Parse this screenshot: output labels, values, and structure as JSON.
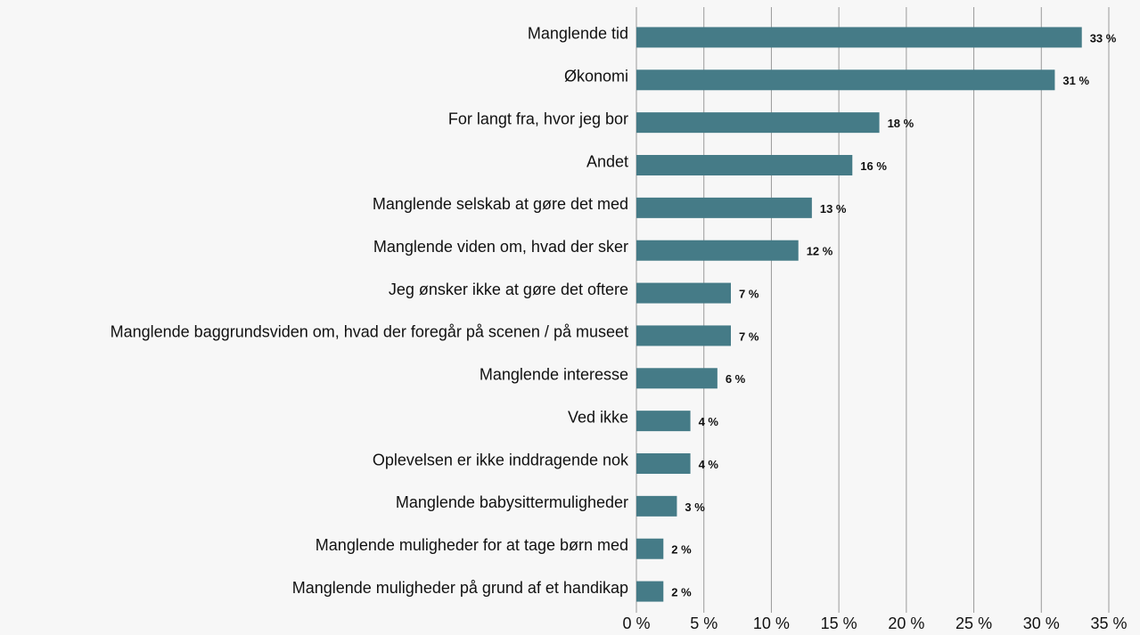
{
  "chart_data": {
    "type": "bar",
    "orientation": "horizontal",
    "categories": [
      "Manglende tid",
      "Økonomi",
      "For langt fra, hvor jeg bor",
      "Andet",
      "Manglende selskab at gøre det med",
      "Manglende viden om, hvad der sker",
      "Jeg ønsker ikke at gøre det oftere",
      "Manglende baggrundsviden om, hvad der foregår på scenen / på museet",
      "Manglende interesse",
      "Ved ikke",
      "Oplevelsen er ikke inddragende nok",
      "Manglende babysittermuligheder",
      "Manglende muligheder for at tage børn med",
      "Manglende muligheder på grund af et handikap"
    ],
    "values": [
      33,
      31,
      18,
      16,
      13,
      12,
      7,
      7,
      6,
      4,
      4,
      3,
      2,
      2
    ],
    "value_labels": [
      "33 %",
      "31 %",
      "18 %",
      "16 %",
      "13 %",
      "12 %",
      "7 %",
      "7 %",
      "6 %",
      "4 %",
      "4 %",
      "3 %",
      "2 %",
      "2 %"
    ],
    "color": "#457b87",
    "xlim": [
      0,
      35
    ],
    "xticks": [
      {
        "value": 0,
        "label": "0 %"
      },
      {
        "value": 5,
        "label": "5 %"
      },
      {
        "value": 10,
        "label": "10 %"
      },
      {
        "value": 15,
        "label": "15 %"
      },
      {
        "value": 20,
        "label": "20 %"
      },
      {
        "value": 25,
        "label": "25 %"
      },
      {
        "value": 30,
        "label": "30 %"
      },
      {
        "value": 35,
        "label": "35 %"
      }
    ],
    "grid": true
  }
}
